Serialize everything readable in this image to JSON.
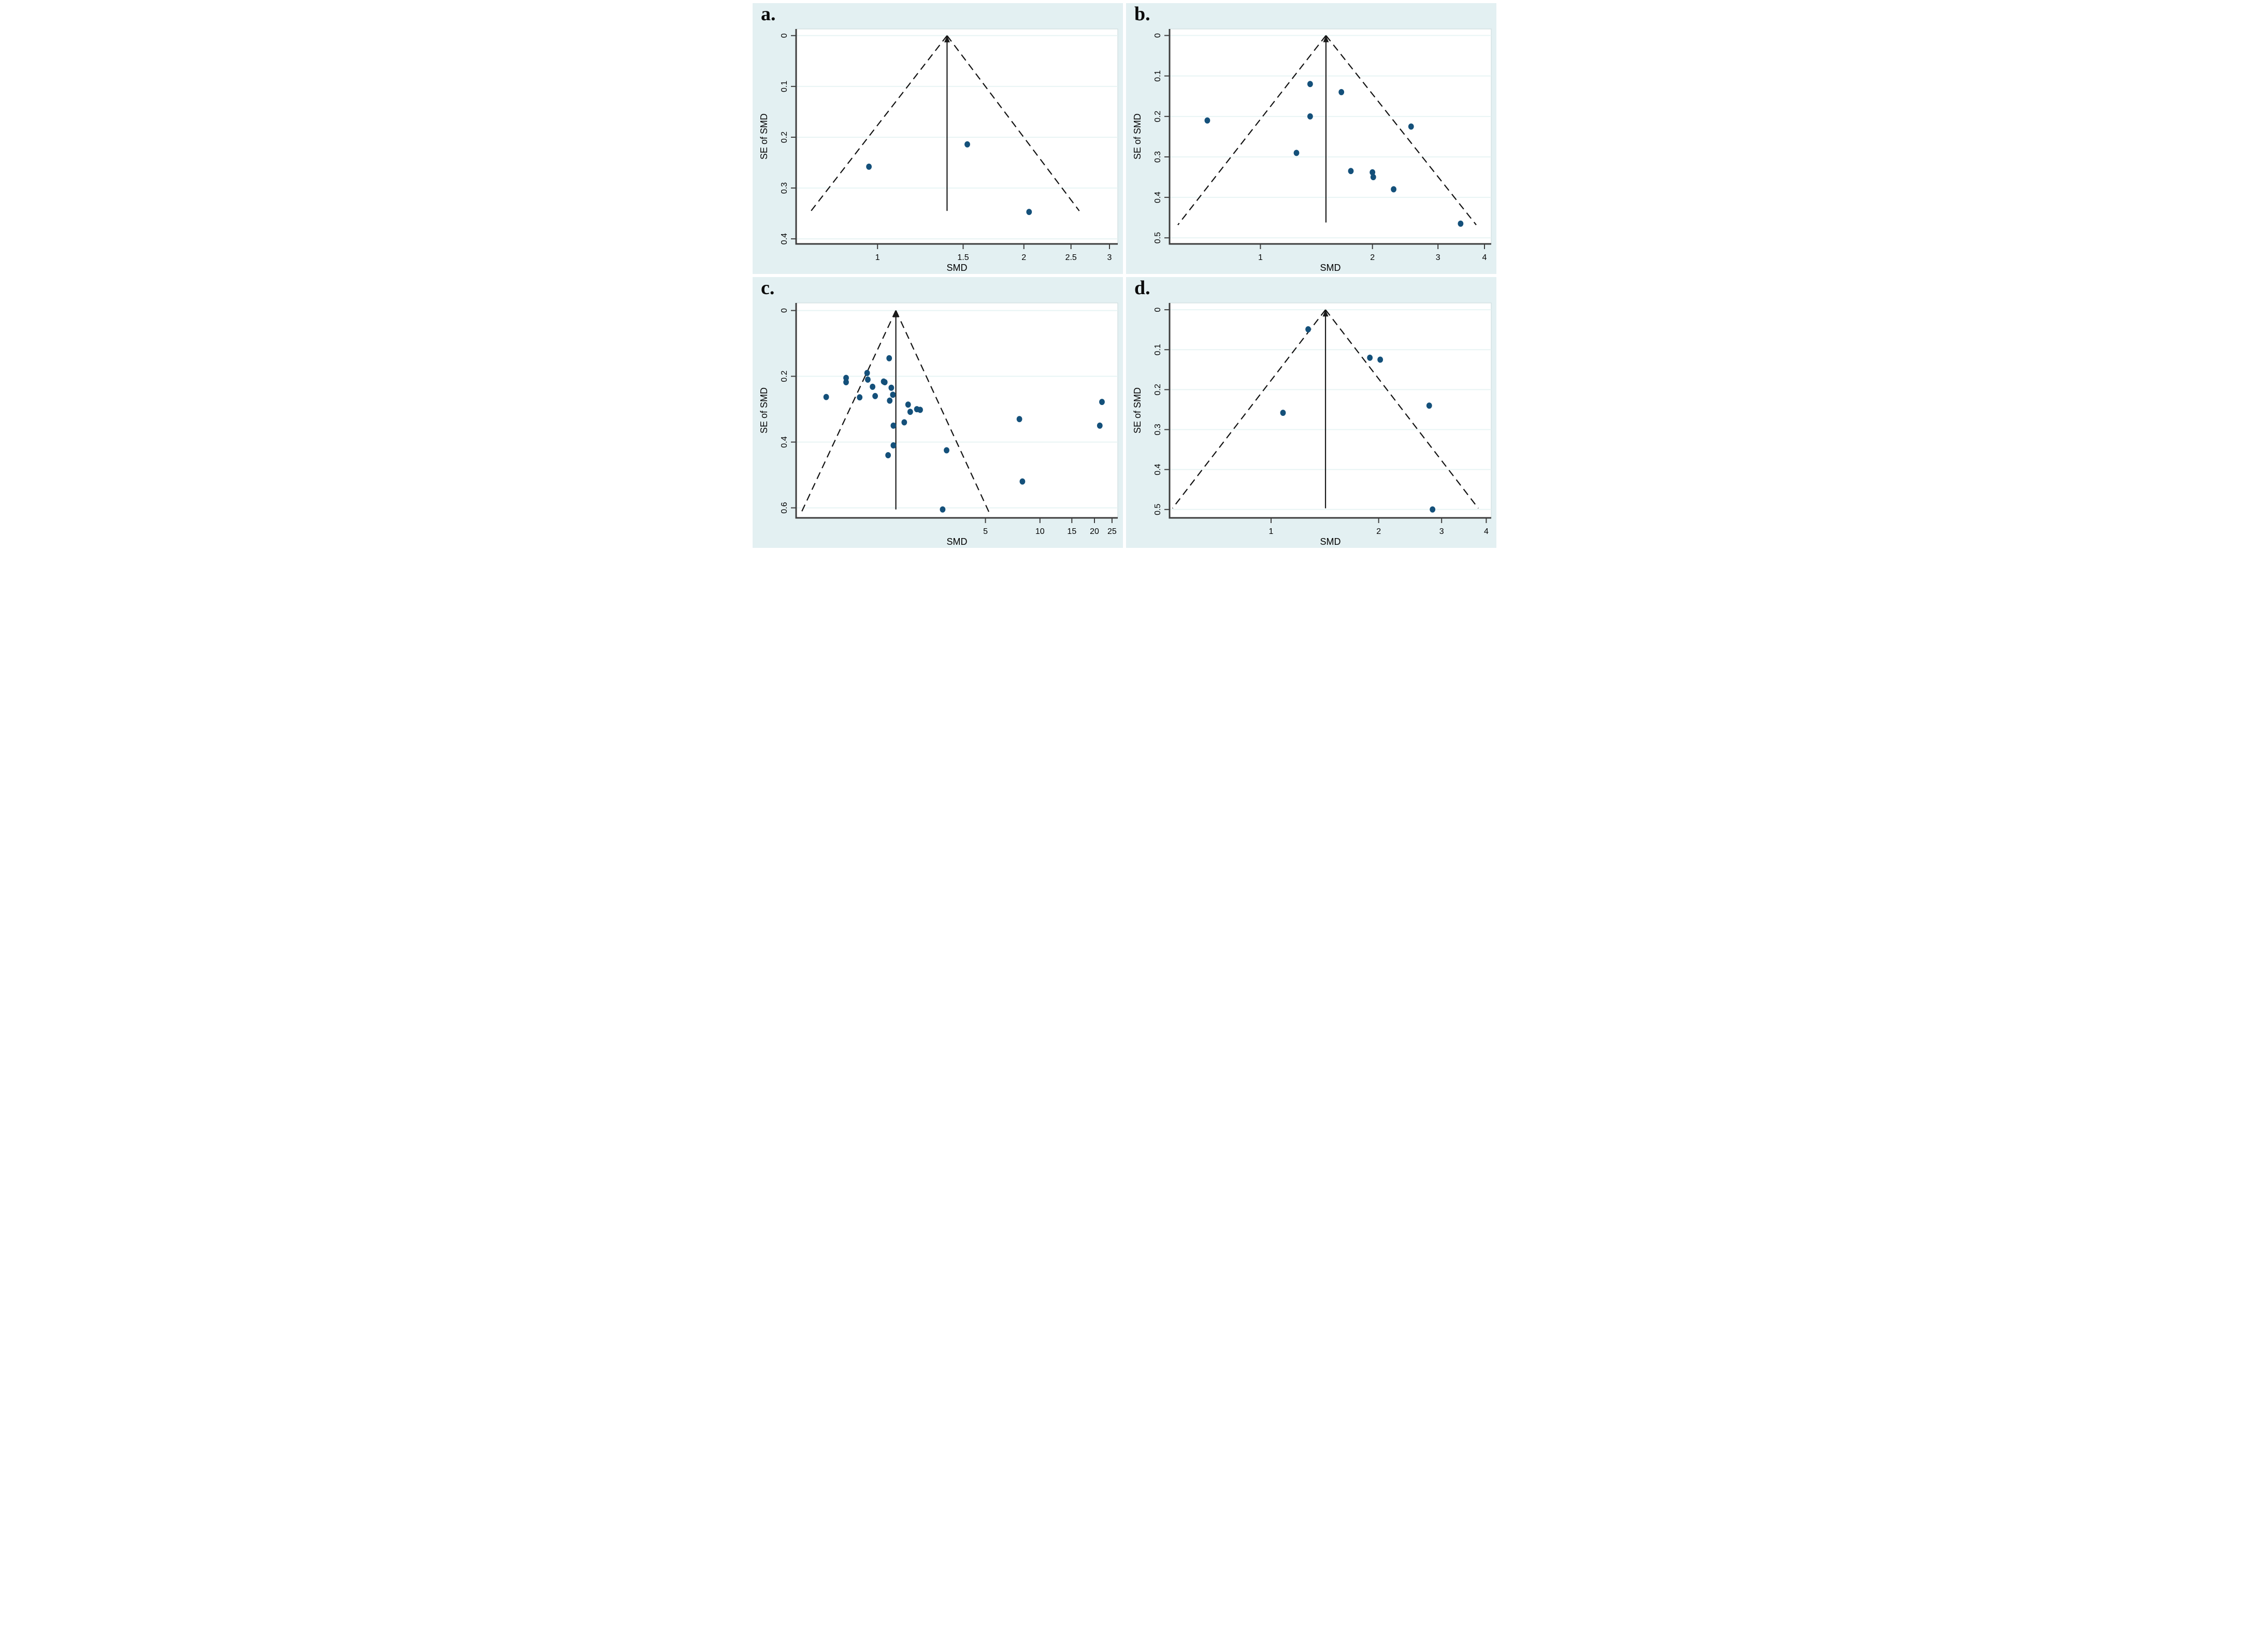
{
  "figure": {
    "description": "Funnel plots of SMD versus SE of SMD with pseudo 95% confidence limits",
    "xlabel": "SMD",
    "ylabel": "SE of SMD"
  },
  "colors": {
    "panel_background": "#e3f0f2",
    "plot_background": "#ffffff",
    "gridline": "#e8f4f4",
    "frame": "#c9d8da",
    "axis": "#3d3d3d",
    "funnel_dash": "#111111",
    "pooled_line": "#1a1a1a",
    "point": "#14507a",
    "text": "#000000"
  },
  "chart_data": [
    {
      "panel_label": "a.",
      "type": "scatter",
      "xlabel": "SMD",
      "ylabel": "SE of SMD",
      "x_scale": "log10",
      "y_inverted": true,
      "grid": true,
      "x_range": [
        0.68,
        3.12
      ],
      "y_range": [
        -0.013,
        0.41
      ],
      "x_tick_values": [
        1,
        1.5,
        2,
        2.5,
        3
      ],
      "x_tick_labels": [
        "1",
        "1.5",
        "2",
        "2.5",
        "3"
      ],
      "y_tick_values": [
        0,
        0.1,
        0.2,
        0.3,
        0.4
      ],
      "y_tick_labels": [
        "0",
        "0.1",
        "0.2",
        "0.3",
        "0.4"
      ],
      "pooled_smd": 1.39,
      "line_bottom_se": 0.345,
      "funnel": {
        "bottom_se": 0.345,
        "left_x": 0.73,
        "right_x": 2.6
      },
      "points": [
        [
          0.96,
          0.258
        ],
        [
          1.53,
          0.214
        ],
        [
          2.05,
          0.347
        ]
      ]
    },
    {
      "panel_label": "b.",
      "type": "scatter",
      "xlabel": "SMD",
      "ylabel": "SE of SMD",
      "x_scale": "log10",
      "y_inverted": true,
      "grid": true,
      "x_range": [
        0.57,
        4.17
      ],
      "y_range": [
        -0.016,
        0.515
      ],
      "x_tick_values": [
        1,
        2,
        3,
        4
      ],
      "x_tick_labels": [
        "1",
        "2",
        "3",
        "4"
      ],
      "y_tick_values": [
        0,
        0.1,
        0.2,
        0.3,
        0.4,
        0.5
      ],
      "y_tick_labels": [
        "0",
        "0.1",
        "0.2",
        "0.3",
        "0.4",
        "0.5"
      ],
      "pooled_smd": 1.5,
      "line_bottom_se": 0.462,
      "funnel": {
        "bottom_se": 0.468,
        "left_x": 0.6,
        "right_x": 3.8
      },
      "points": [
        [
          1.36,
          0.12
        ],
        [
          1.65,
          0.14
        ],
        [
          1.36,
          0.2
        ],
        [
          0.72,
          0.21
        ],
        [
          2.54,
          0.225
        ],
        [
          1.25,
          0.29
        ],
        [
          1.75,
          0.335
        ],
        [
          2.0,
          0.338
        ],
        [
          2.01,
          0.35
        ],
        [
          2.28,
          0.38
        ],
        [
          3.45,
          0.465
        ]
      ]
    },
    {
      "panel_label": "c.",
      "type": "scatter",
      "xlabel": "SMD",
      "ylabel": "SE of SMD",
      "x_scale": "log10",
      "y_inverted": true,
      "grid": true,
      "x_range": [
        0.45,
        26.9
      ],
      "y_range": [
        -0.023,
        0.6305
      ],
      "x_tick_values": [
        5,
        10,
        15,
        20,
        25
      ],
      "x_tick_labels": [
        "5",
        "10",
        "15",
        "20",
        "25"
      ],
      "y_tick_values": [
        0,
        0.2,
        0.4,
        0.6
      ],
      "y_tick_labels": [
        "0",
        "0.2",
        "0.4",
        "0.6"
      ],
      "pooled_smd": 1.6,
      "line_bottom_se": 0.605,
      "funnel": {
        "bottom_se": 0.615,
        "left_x": 0.48,
        "right_x": 5.25
      },
      "points": [
        [
          1.47,
          0.145
        ],
        [
          1.11,
          0.19
        ],
        [
          0.85,
          0.205
        ],
        [
          0.85,
          0.218
        ],
        [
          1.12,
          0.21
        ],
        [
          1.37,
          0.216
        ],
        [
          1.39,
          0.218
        ],
        [
          1.19,
          0.232
        ],
        [
          1.51,
          0.235
        ],
        [
          1.54,
          0.256
        ],
        [
          0.66,
          0.263
        ],
        [
          1.01,
          0.264
        ],
        [
          1.23,
          0.26
        ],
        [
          1.48,
          0.274
        ],
        [
          1.87,
          0.286
        ],
        [
          2.09,
          0.3
        ],
        [
          2.18,
          0.302
        ],
        [
          1.92,
          0.308
        ],
        [
          1.78,
          0.34
        ],
        [
          1.55,
          0.35
        ],
        [
          1.55,
          0.41
        ],
        [
          1.45,
          0.44
        ],
        [
          3.05,
          0.425
        ],
        [
          2.9,
          0.605
        ],
        [
          7.7,
          0.33
        ],
        [
          8.0,
          0.52
        ],
        [
          22.0,
          0.278
        ],
        [
          21.4,
          0.35
        ]
      ]
    },
    {
      "panel_label": "d.",
      "type": "scatter",
      "xlabel": "SMD",
      "ylabel": "SE of SMD",
      "x_scale": "log10",
      "y_inverted": true,
      "grid": true,
      "x_range": [
        0.52,
        4.13
      ],
      "y_range": [
        -0.017,
        0.521
      ],
      "x_tick_values": [
        1,
        2,
        3,
        4
      ],
      "x_tick_labels": [
        "1",
        "2",
        "3",
        "4"
      ],
      "y_tick_values": [
        0,
        0.1,
        0.2,
        0.3,
        0.4,
        0.5
      ],
      "y_tick_labels": [
        "0",
        "0.1",
        "0.2",
        "0.3",
        "0.4",
        "0.5"
      ],
      "pooled_smd": 1.42,
      "line_bottom_se": 0.497,
      "funnel": {
        "bottom_se": 0.497,
        "left_x": 0.53,
        "right_x": 3.8
      },
      "points": [
        [
          1.27,
          0.049
        ],
        [
          1.89,
          0.12
        ],
        [
          2.02,
          0.125
        ],
        [
          2.77,
          0.24
        ],
        [
          1.08,
          0.258
        ],
        [
          2.83,
          0.5
        ]
      ]
    }
  ]
}
